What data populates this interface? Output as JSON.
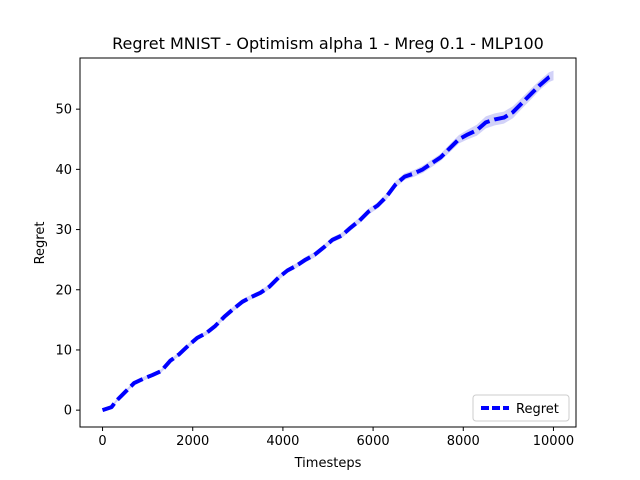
{
  "chart_data": {
    "type": "line",
    "title": "Regret MNIST - Optimism alpha 1 - Mreg 0.1 - MLP100",
    "xlabel": "Timesteps",
    "ylabel": "Regret",
    "xlim": [
      -500,
      10500
    ],
    "ylim": [
      -2.8,
      58.5
    ],
    "xticks": [
      0,
      2000,
      4000,
      6000,
      8000,
      10000
    ],
    "yticks": [
      0,
      10,
      20,
      30,
      40,
      50
    ],
    "grid": false,
    "legend": {
      "position": "lower right",
      "entries": [
        "Regret"
      ]
    },
    "series": [
      {
        "name": "Regret",
        "color": "#0000ff",
        "style": "dashed",
        "band_color": "#bfbff5",
        "x": [
          0,
          200,
          300,
          500,
          700,
          900,
          1100,
          1300,
          1500,
          1700,
          1900,
          2100,
          2300,
          2500,
          2700,
          2900,
          3100,
          3300,
          3500,
          3700,
          3900,
          4100,
          4300,
          4500,
          4700,
          4900,
          5100,
          5300,
          5500,
          5700,
          5900,
          6100,
          6300,
          6500,
          6700,
          6900,
          7100,
          7300,
          7500,
          7700,
          7900,
          8100,
          8300,
          8500,
          8700,
          8900,
          9100,
          9300,
          9500,
          9700,
          9900,
          10000
        ],
        "y": [
          0.0,
          0.5,
          1.5,
          3.0,
          4.5,
          5.2,
          5.8,
          6.5,
          8.2,
          9.3,
          10.7,
          12.0,
          12.8,
          14.0,
          15.5,
          16.8,
          18.0,
          18.8,
          19.5,
          20.5,
          22.0,
          23.2,
          24.0,
          25.0,
          25.8,
          27.0,
          28.3,
          29.0,
          30.3,
          31.5,
          33.0,
          34.0,
          35.5,
          37.5,
          38.8,
          39.3,
          40.0,
          41.0,
          42.0,
          43.5,
          45.0,
          45.8,
          46.5,
          47.8,
          48.3,
          48.6,
          49.5,
          51.0,
          52.5,
          54.0,
          55.3,
          55.6
        ],
        "band_halfwidth": [
          0.2,
          0.2,
          0.25,
          0.25,
          0.3,
          0.3,
          0.3,
          0.3,
          0.3,
          0.3,
          0.35,
          0.35,
          0.35,
          0.35,
          0.35,
          0.4,
          0.4,
          0.4,
          0.4,
          0.4,
          0.4,
          0.4,
          0.4,
          0.45,
          0.45,
          0.45,
          0.45,
          0.45,
          0.5,
          0.5,
          0.5,
          0.5,
          0.5,
          0.55,
          0.55,
          0.55,
          0.6,
          0.6,
          0.6,
          0.65,
          0.7,
          0.8,
          0.9,
          1.0,
          1.0,
          1.0,
          1.0,
          0.9,
          0.9,
          0.8,
          0.8,
          0.8
        ]
      }
    ]
  }
}
